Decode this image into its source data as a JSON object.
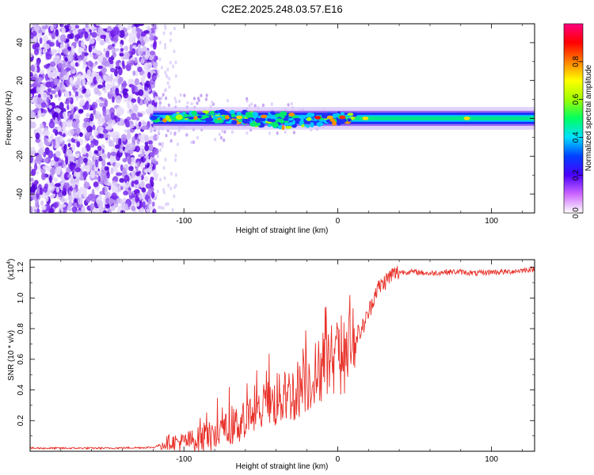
{
  "title": "C2E2.2025.248.03.57.E16",
  "colors": {
    "line": "#e8312a",
    "axis": "#000000",
    "noise": "#7a2ff0",
    "noise_light": "#c9b0f5"
  },
  "chart_data": [
    {
      "type": "heatmap",
      "name": "spectrogram",
      "xlabel": "Height of straight line (km)",
      "ylabel": "Frequency (Hz)",
      "xlim": [
        -200,
        128
      ],
      "ylim": [
        -50,
        50
      ],
      "x_ticks": [
        -100,
        0,
        100
      ],
      "x_tick_labels": [
        "-100",
        "0",
        "100"
      ],
      "y_ticks": [
        -40,
        -20,
        0,
        20,
        40
      ],
      "y_tick_labels": [
        "-40",
        "-20",
        "0",
        "20",
        "40"
      ],
      "noise_region_km": [
        -200,
        -118
      ],
      "signal_start_km": -120,
      "signal_center_hz": 0,
      "signal_halfwidth_hz": 3,
      "colorbar": {
        "label": "Normalized spectral amplitude",
        "range": [
          0,
          1
        ],
        "ticks": [
          0.0,
          0.2,
          0.4,
          0.6,
          0.8
        ],
        "tick_labels": [
          "0.0",
          "0.2",
          "0.4",
          "0.6",
          "0.8"
        ],
        "stops": [
          "#ffffff",
          "#cc66ff",
          "#4b00ff",
          "#0040ff",
          "#00e0ff",
          "#00ff60",
          "#a0ff00",
          "#ffff00",
          "#ff8000",
          "#ff0000",
          "#ff0080"
        ]
      }
    },
    {
      "type": "line",
      "name": "snr",
      "xlabel": "Height of straight line (km)",
      "ylabel": "SNR (10 * v/v)",
      "scale_note": "(x10",
      "scale_exp": "4",
      "scale_close": ")",
      "xlim": [
        -200,
        128
      ],
      "ylim": [
        0,
        1.25
      ],
      "x_ticks": [
        -100,
        0,
        100
      ],
      "x_tick_labels": [
        "-100",
        "0",
        "100"
      ],
      "y_ticks": [
        0.2,
        0.4,
        0.6,
        0.8,
        1.0,
        1.2
      ],
      "y_tick_labels": [
        "0.2",
        "0.4",
        "0.6",
        "0.8",
        "1.0",
        "1.2"
      ],
      "series": [
        {
          "name": "SNR",
          "x": [
            -200,
            -150,
            -120,
            -110,
            -100,
            -90,
            -80,
            -70,
            -60,
            -50,
            -40,
            -30,
            -20,
            -10,
            -5,
            0,
            5,
            10,
            15,
            20,
            25,
            30,
            35,
            40,
            50,
            60,
            70,
            80,
            90,
            100,
            110,
            120,
            128
          ],
          "y": [
            0.02,
            0.02,
            0.025,
            0.06,
            0.06,
            0.08,
            0.1,
            0.15,
            0.2,
            0.28,
            0.32,
            0.38,
            0.45,
            0.55,
            0.6,
            0.62,
            0.6,
            0.75,
            0.78,
            0.9,
            1.05,
            1.1,
            1.15,
            1.17,
            1.17,
            1.16,
            1.17,
            1.17,
            1.16,
            1.17,
            1.17,
            1.18,
            1.19
          ]
        }
      ]
    }
  ]
}
